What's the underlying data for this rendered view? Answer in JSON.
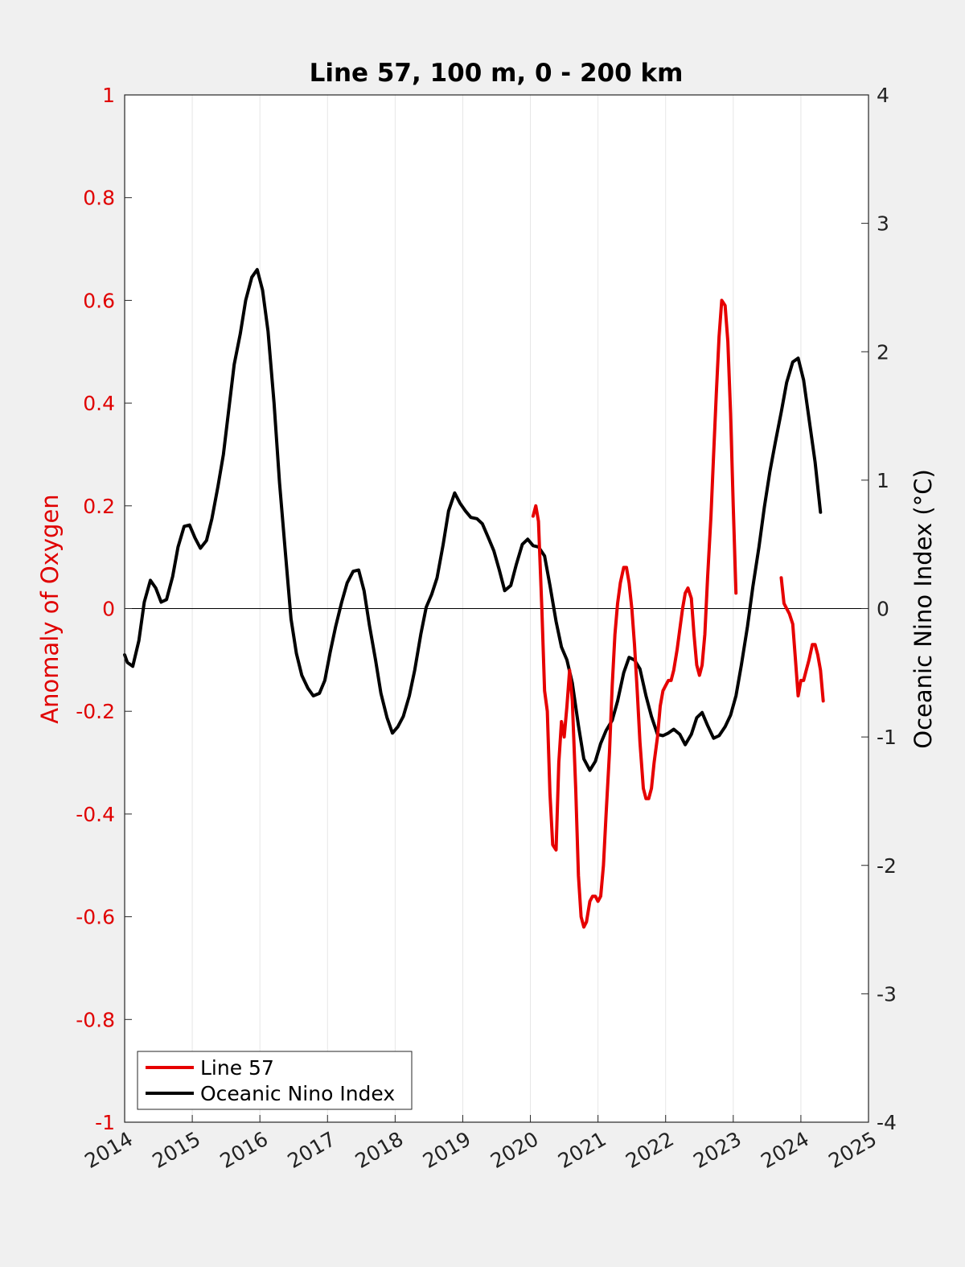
{
  "chart_data": {
    "type": "line",
    "title": "Line 57, 100 m, 0 - 200 km",
    "ylabel_left": "Anomaly of Oxygen",
    "ylabel_right": "Oceanic Nino Index (°C)",
    "x_ticks": [
      "2014",
      "2015",
      "2016",
      "2017",
      "2018",
      "2019",
      "2020",
      "2021",
      "2022",
      "2023",
      "2024",
      "2025"
    ],
    "xlim": [
      2014,
      2025
    ],
    "ylim_left": [
      -1,
      1
    ],
    "ylim_right": [
      -4,
      4
    ],
    "y_ticks_left": [
      "1",
      "0.8",
      "0.6",
      "0.4",
      "0.2",
      "0",
      "-0.2",
      "-0.4",
      "-0.6",
      "-0.8",
      "-1"
    ],
    "y_ticks_left_values": [
      1,
      0.8,
      0.6,
      0.4,
      0.2,
      0,
      -0.2,
      -0.4,
      -0.6,
      -0.8,
      -1
    ],
    "y_ticks_right": [
      "4",
      "3",
      "2",
      "1",
      "0",
      "-1",
      "-2",
      "-3",
      "-4"
    ],
    "y_ticks_right_values": [
      4,
      3,
      2,
      1,
      0,
      -1,
      -2,
      -3,
      -4
    ],
    "grid": "vertical",
    "legend_position": "bottom-left",
    "series": [
      {
        "name": "Line 57",
        "axis": "left",
        "color": "#e60000",
        "segments": [
          [
            [
              2020.04,
              0.18
            ],
            [
              2020.08,
              0.2
            ],
            [
              2020.12,
              0.17
            ],
            [
              2020.17,
              0.0
            ],
            [
              2020.21,
              -0.16
            ],
            [
              2020.25,
              -0.2
            ],
            [
              2020.29,
              -0.36
            ],
            [
              2020.33,
              -0.46
            ],
            [
              2020.38,
              -0.47
            ],
            [
              2020.42,
              -0.3
            ],
            [
              2020.46,
              -0.22
            ],
            [
              2020.5,
              -0.25
            ],
            [
              2020.54,
              -0.19
            ],
            [
              2020.58,
              -0.12
            ],
            [
              2020.62,
              -0.18
            ],
            [
              2020.67,
              -0.35
            ],
            [
              2020.71,
              -0.52
            ],
            [
              2020.75,
              -0.6
            ],
            [
              2020.79,
              -0.62
            ],
            [
              2020.83,
              -0.61
            ],
            [
              2020.88,
              -0.57
            ],
            [
              2020.92,
              -0.56
            ],
            [
              2020.96,
              -0.56
            ],
            [
              2021.0,
              -0.57
            ],
            [
              2021.04,
              -0.56
            ],
            [
              2021.08,
              -0.5
            ],
            [
              2021.12,
              -0.4
            ],
            [
              2021.17,
              -0.28
            ],
            [
              2021.21,
              -0.15
            ],
            [
              2021.25,
              -0.05
            ],
            [
              2021.29,
              0.01
            ],
            [
              2021.33,
              0.05
            ],
            [
              2021.38,
              0.08
            ],
            [
              2021.42,
              0.08
            ],
            [
              2021.46,
              0.05
            ],
            [
              2021.5,
              0.0
            ],
            [
              2021.54,
              -0.07
            ],
            [
              2021.58,
              -0.16
            ],
            [
              2021.62,
              -0.26
            ],
            [
              2021.67,
              -0.35
            ],
            [
              2021.71,
              -0.37
            ],
            [
              2021.75,
              -0.37
            ],
            [
              2021.79,
              -0.35
            ],
            [
              2021.83,
              -0.3
            ],
            [
              2021.88,
              -0.25
            ],
            [
              2021.92,
              -0.19
            ],
            [
              2021.96,
              -0.16
            ],
            [
              2022.0,
              -0.15
            ],
            [
              2022.04,
              -0.14
            ],
            [
              2022.08,
              -0.14
            ],
            [
              2022.12,
              -0.12
            ],
            [
              2022.17,
              -0.08
            ],
            [
              2022.21,
              -0.04
            ],
            [
              2022.25,
              0.0
            ],
            [
              2022.29,
              0.03
            ],
            [
              2022.33,
              0.04
            ],
            [
              2022.38,
              0.02
            ],
            [
              2022.42,
              -0.05
            ],
            [
              2022.46,
              -0.11
            ],
            [
              2022.5,
              -0.13
            ],
            [
              2022.54,
              -0.11
            ],
            [
              2022.58,
              -0.05
            ],
            [
              2022.62,
              0.06
            ],
            [
              2022.67,
              0.18
            ],
            [
              2022.71,
              0.3
            ],
            [
              2022.75,
              0.42
            ],
            [
              2022.79,
              0.53
            ],
            [
              2022.83,
              0.6
            ],
            [
              2022.88,
              0.59
            ],
            [
              2022.92,
              0.52
            ],
            [
              2022.96,
              0.38
            ],
            [
              2023.0,
              0.2
            ],
            [
              2023.04,
              0.03
            ]
          ],
          [
            [
              2023.71,
              0.06
            ],
            [
              2023.75,
              0.01
            ],
            [
              2023.79,
              0.0
            ],
            [
              2023.83,
              -0.01
            ],
            [
              2023.88,
              -0.03
            ],
            [
              2023.92,
              -0.1
            ],
            [
              2023.96,
              -0.17
            ],
            [
              2024.0,
              -0.14
            ],
            [
              2024.04,
              -0.14
            ],
            [
              2024.08,
              -0.12
            ],
            [
              2024.12,
              -0.1
            ],
            [
              2024.17,
              -0.07
            ],
            [
              2024.21,
              -0.07
            ],
            [
              2024.25,
              -0.09
            ],
            [
              2024.29,
              -0.12
            ],
            [
              2024.33,
              -0.18
            ]
          ]
        ]
      },
      {
        "name": "Oceanic Nino Index",
        "axis": "right",
        "color": "#000000",
        "segments": [
          [
            [
              2014.0,
              -0.36
            ],
            [
              2014.04,
              -0.42
            ],
            [
              2014.12,
              -0.45
            ],
            [
              2014.21,
              -0.25
            ],
            [
              2014.29,
              0.05
            ],
            [
              2014.38,
              0.22
            ],
            [
              2014.46,
              0.16
            ],
            [
              2014.54,
              0.05
            ],
            [
              2014.62,
              0.07
            ],
            [
              2014.71,
              0.25
            ],
            [
              2014.79,
              0.48
            ],
            [
              2014.88,
              0.64
            ],
            [
              2014.96,
              0.65
            ],
            [
              2015.04,
              0.55
            ],
            [
              2015.12,
              0.47
            ],
            [
              2015.21,
              0.53
            ],
            [
              2015.29,
              0.7
            ],
            [
              2015.38,
              0.95
            ],
            [
              2015.46,
              1.2
            ],
            [
              2015.54,
              1.55
            ],
            [
              2015.62,
              1.9
            ],
            [
              2015.71,
              2.14
            ],
            [
              2015.79,
              2.4
            ],
            [
              2015.88,
              2.58
            ],
            [
              2015.96,
              2.64
            ],
            [
              2016.04,
              2.48
            ],
            [
              2016.12,
              2.16
            ],
            [
              2016.21,
              1.6
            ],
            [
              2016.29,
              0.98
            ],
            [
              2016.38,
              0.42
            ],
            [
              2016.46,
              -0.08
            ],
            [
              2016.54,
              -0.35
            ],
            [
              2016.62,
              -0.52
            ],
            [
              2016.71,
              -0.62
            ],
            [
              2016.79,
              -0.68
            ],
            [
              2016.88,
              -0.66
            ],
            [
              2016.96,
              -0.56
            ],
            [
              2017.04,
              -0.34
            ],
            [
              2017.12,
              -0.14
            ],
            [
              2017.21,
              0.05
            ],
            [
              2017.29,
              0.2
            ],
            [
              2017.38,
              0.29
            ],
            [
              2017.46,
              0.3
            ],
            [
              2017.54,
              0.14
            ],
            [
              2017.62,
              -0.13
            ],
            [
              2017.71,
              -0.4
            ],
            [
              2017.79,
              -0.66
            ],
            [
              2017.88,
              -0.85
            ],
            [
              2017.96,
              -0.97
            ],
            [
              2018.04,
              -0.92
            ],
            [
              2018.12,
              -0.84
            ],
            [
              2018.21,
              -0.68
            ],
            [
              2018.29,
              -0.48
            ],
            [
              2018.38,
              -0.2
            ],
            [
              2018.46,
              0.01
            ],
            [
              2018.54,
              0.11
            ],
            [
              2018.62,
              0.24
            ],
            [
              2018.71,
              0.5
            ],
            [
              2018.79,
              0.76
            ],
            [
              2018.88,
              0.9
            ],
            [
              2018.96,
              0.82
            ],
            [
              2019.04,
              0.76
            ],
            [
              2019.12,
              0.71
            ],
            [
              2019.21,
              0.7
            ],
            [
              2019.29,
              0.66
            ],
            [
              2019.38,
              0.55
            ],
            [
              2019.46,
              0.45
            ],
            [
              2019.54,
              0.3
            ],
            [
              2019.62,
              0.14
            ],
            [
              2019.71,
              0.18
            ],
            [
              2019.79,
              0.34
            ],
            [
              2019.88,
              0.5
            ],
            [
              2019.96,
              0.54
            ],
            [
              2020.04,
              0.49
            ],
            [
              2020.12,
              0.48
            ],
            [
              2020.21,
              0.41
            ],
            [
              2020.29,
              0.18
            ],
            [
              2020.38,
              -0.1
            ],
            [
              2020.46,
              -0.3
            ],
            [
              2020.54,
              -0.4
            ],
            [
              2020.62,
              -0.58
            ],
            [
              2020.71,
              -0.91
            ],
            [
              2020.79,
              -1.17
            ],
            [
              2020.88,
              -1.26
            ],
            [
              2020.96,
              -1.19
            ],
            [
              2021.04,
              -1.05
            ],
            [
              2021.12,
              -0.95
            ],
            [
              2021.21,
              -0.87
            ],
            [
              2021.29,
              -0.72
            ],
            [
              2021.38,
              -0.5
            ],
            [
              2021.46,
              -0.38
            ],
            [
              2021.54,
              -0.4
            ],
            [
              2021.62,
              -0.47
            ],
            [
              2021.71,
              -0.68
            ],
            [
              2021.79,
              -0.84
            ],
            [
              2021.88,
              -0.98
            ],
            [
              2021.96,
              -0.99
            ],
            [
              2022.04,
              -0.97
            ],
            [
              2022.12,
              -0.94
            ],
            [
              2022.21,
              -0.98
            ],
            [
              2022.29,
              -1.06
            ],
            [
              2022.38,
              -0.98
            ],
            [
              2022.46,
              -0.85
            ],
            [
              2022.54,
              -0.81
            ],
            [
              2022.62,
              -0.91
            ],
            [
              2022.71,
              -1.01
            ],
            [
              2022.79,
              -0.99
            ],
            [
              2022.88,
              -0.92
            ],
            [
              2022.96,
              -0.83
            ],
            [
              2023.04,
              -0.68
            ],
            [
              2023.12,
              -0.44
            ],
            [
              2023.21,
              -0.14
            ],
            [
              2023.29,
              0.17
            ],
            [
              2023.38,
              0.48
            ],
            [
              2023.46,
              0.79
            ],
            [
              2023.54,
              1.06
            ],
            [
              2023.62,
              1.29
            ],
            [
              2023.71,
              1.53
            ],
            [
              2023.79,
              1.76
            ],
            [
              2023.88,
              1.92
            ],
            [
              2023.96,
              1.95
            ],
            [
              2024.04,
              1.78
            ],
            [
              2024.12,
              1.48
            ],
            [
              2024.21,
              1.14
            ],
            [
              2024.29,
              0.75
            ]
          ]
        ]
      }
    ]
  }
}
